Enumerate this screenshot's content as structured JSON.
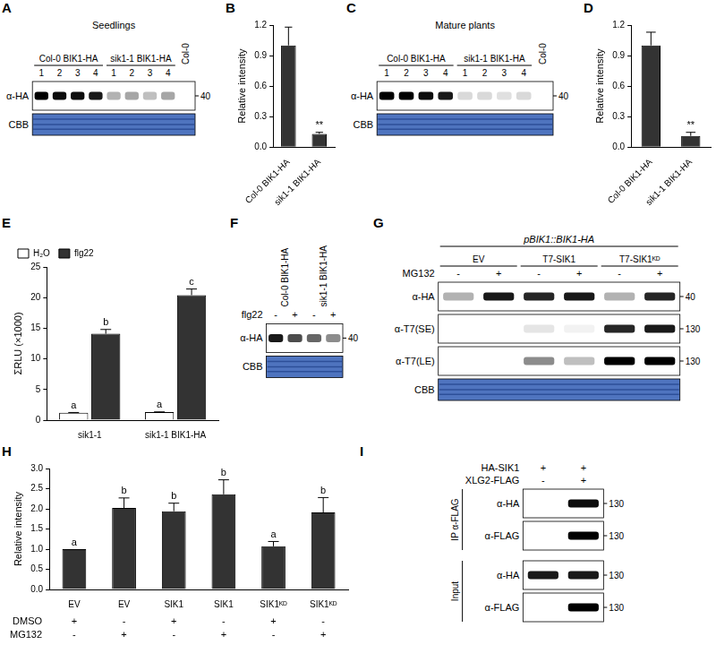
{
  "chart_data": [
    {
      "panel": "B",
      "type": "bar",
      "y_label": "Relative intensity",
      "categories": [
        "Col-0 BIK1-HA",
        "sik1-1 BIK1-HA"
      ],
      "values": [
        1.0,
        0.13
      ],
      "errors": [
        0.18,
        0.015
      ],
      "annotations": [
        null,
        "**"
      ],
      "color": "#333333",
      "ylim": [
        0,
        1.2
      ],
      "yticks": [
        {
          "value": 0,
          "label": "0.0"
        },
        0.3,
        0.6,
        0.9,
        1.2
      ],
      "grid": false
    },
    {
      "panel": "D",
      "type": "bar",
      "y_label": "Relative intensity",
      "categories": [
        "Col-0 BIK1-HA",
        "sik1-1 BIK1-HA"
      ],
      "values": [
        1.0,
        0.11
      ],
      "errors": [
        0.13,
        0.035
      ],
      "annotations": [
        null,
        "**"
      ],
      "color": "#333333",
      "ylim": [
        0,
        1.2
      ],
      "yticks": [
        {
          "value": 0,
          "label": "0.0"
        },
        0.3,
        0.6,
        0.9,
        1.2
      ],
      "grid": false
    },
    {
      "panel": "E",
      "type": "bar",
      "y_label": "ΣRLU (×1000)",
      "categories": [
        "sik1-1",
        "sik1-1 BIK1-HA"
      ],
      "series": [
        {
          "name": "H₂O",
          "color": "#ffffff",
          "values": [
            1.2,
            1.3
          ],
          "errors": [
            0.05,
            0.05
          ],
          "annotations": [
            "a",
            "a"
          ]
        },
        {
          "name": "flg22",
          "color": "#333333",
          "values": [
            14.1,
            20.4
          ],
          "errors": [
            0.7,
            1.0
          ],
          "annotations": [
            "b",
            "c"
          ]
        }
      ],
      "legend": "top-left",
      "ylim": [
        0,
        25
      ],
      "yticks": [
        0,
        5,
        10,
        15,
        20,
        25
      ],
      "grid": false
    },
    {
      "panel": "H",
      "type": "bar",
      "y_label": "Relative intensity",
      "categories": [
        "EV",
        "EV",
        "SIK1",
        "SIK1",
        "SIK1ᴷᴰ",
        "SIK1ᴷᴰ"
      ],
      "values": [
        1.0,
        2.02,
        1.94,
        2.36,
        1.07,
        1.91
      ],
      "errors": [
        0,
        0.25,
        0.2,
        0.36,
        0.12,
        0.37
      ],
      "annotations": [
        "a",
        "b",
        "b",
        "b",
        "a",
        "b"
      ],
      "color": "#333333",
      "ylim": [
        0,
        3
      ],
      "yticks": [
        {
          "value": 0,
          "label": "0.0"
        },
        0.5,
        {
          "value": 1,
          "label": "1.0"
        },
        1.5,
        {
          "value": 2,
          "label": "2.0"
        },
        2.5,
        {
          "value": 3,
          "label": "3.0"
        }
      ],
      "grid": false,
      "treatments": [
        {
          "label": "DMSO",
          "values": [
            "+",
            "-",
            "+",
            "-",
            "+",
            "-"
          ]
        },
        {
          "label": "MG132",
          "values": [
            "-",
            "+",
            "-",
            "+",
            "-",
            "+"
          ]
        }
      ]
    }
  ],
  "blots": [
    {
      "panel": "A",
      "title": "Seedlings",
      "groups": [
        {
          "label": "Col-0 BIK1-HA",
          "lanes": [
            "1",
            "2",
            "3",
            "4"
          ]
        },
        {
          "label": "sik1-1 BIK1-HA",
          "lanes": [
            "1",
            "2",
            "3",
            "4"
          ]
        },
        {
          "label": "Col-0",
          "lanes": [
            null
          ]
        }
      ],
      "blocks": [
        {
          "rows": [
            {
              "label": "α-HA",
              "kind": "band",
              "bands": [
                1.0,
                0.95,
                0.95,
                0.9,
                0.3,
                0.35,
                0.25,
                0.35,
                0
              ],
              "marker": 40
            },
            {
              "label": "CBB",
              "kind": "stain"
            }
          ]
        }
      ]
    },
    {
      "panel": "C",
      "title": "Mature plants",
      "groups": [
        {
          "label": "Col-0 BIK1-HA",
          "lanes": [
            "1",
            "2",
            "3",
            "4"
          ]
        },
        {
          "label": "sik1-1 BIK1-HA",
          "lanes": [
            "1",
            "2",
            "3",
            "4"
          ]
        },
        {
          "label": "Col-0",
          "lanes": [
            null
          ]
        }
      ],
      "blocks": [
        {
          "rows": [
            {
              "label": "α-HA",
              "kind": "band",
              "bands": [
                1.0,
                1.0,
                0.95,
                0.9,
                0.15,
                0.15,
                0.12,
                0.15,
                0
              ],
              "marker": 40
            },
            {
              "label": "CBB",
              "kind": "stain"
            }
          ]
        }
      ]
    },
    {
      "panel": "F",
      "groups": [
        {
          "label": "Col-0 BIK1-HA",
          "lanes": [
            null,
            null
          ]
        },
        {
          "label": "sik1-1 BIK1-HA",
          "lanes": [
            null,
            null
          ]
        }
      ],
      "treatments": [
        {
          "label": "flg22",
          "values": [
            "-",
            "+",
            "-",
            "+"
          ]
        }
      ],
      "blocks": [
        {
          "rows": [
            {
              "label": "α-HA",
              "kind": "band",
              "bands": [
                0.9,
                0.7,
                0.6,
                0.45
              ],
              "marker": 40
            },
            {
              "label": "CBB",
              "kind": "stain"
            }
          ]
        }
      ]
    },
    {
      "panel": "G",
      "header": "pBIK1::BIK1-HA",
      "groups": [
        {
          "label": "EV",
          "lanes": [
            null,
            null
          ]
        },
        {
          "label": "T7-SIK1",
          "lanes": [
            null,
            null
          ]
        },
        {
          "label": "T7-SIK1ᴷᴰ",
          "lanes": [
            null,
            null
          ]
        }
      ],
      "treatments": [
        {
          "label": "MG132",
          "values": [
            "-",
            "+",
            "-",
            "+",
            "-",
            "+"
          ]
        }
      ],
      "blocks": [
        {
          "rows": [
            {
              "label": "α-HA",
              "kind": "band",
              "bands": [
                0.3,
                0.9,
                0.85,
                0.9,
                0.3,
                0.85
              ],
              "marker": 40
            },
            {
              "label": "α-T7(SE)",
              "kind": "band",
              "bands": [
                0,
                0,
                0.1,
                0.05,
                0.85,
                0.9
              ],
              "marker": 130
            },
            {
              "label": "α-T7(LE)",
              "kind": "band",
              "bands": [
                0,
                0,
                0.45,
                0.25,
                1.0,
                1.0
              ],
              "marker": 130
            },
            {
              "label": "CBB",
              "kind": "stain"
            }
          ]
        }
      ]
    },
    {
      "panel": "I",
      "treatments": [
        {
          "label": "HA-SIK1",
          "values": [
            "+",
            "+"
          ]
        },
        {
          "label": "XLG2-FLAG",
          "values": [
            "-",
            "+"
          ]
        }
      ],
      "blocks": [
        {
          "section": "IP α-FLAG",
          "rows": [
            {
              "label": "α-HA",
              "kind": "band",
              "bands": [
                0,
                0.95
              ],
              "marker": 130
            },
            {
              "label": "α-FLAG",
              "kind": "band",
              "bands": [
                0,
                1.0
              ],
              "marker": 130
            }
          ]
        },
        {
          "section": "Input",
          "rows": [
            {
              "label": "α-HA",
              "kind": "band",
              "bands": [
                0.9,
                0.9
              ],
              "marker": 130
            },
            {
              "label": "α-FLAG",
              "kind": "band",
              "bands": [
                0,
                1.0
              ],
              "marker": 130
            }
          ]
        }
      ]
    }
  ]
}
